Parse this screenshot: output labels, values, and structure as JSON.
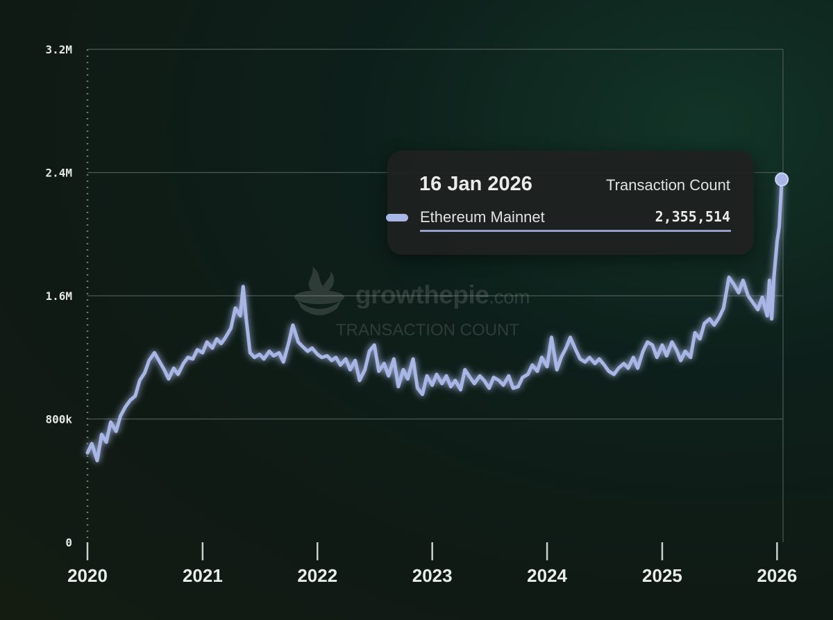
{
  "chart_data": {
    "type": "line",
    "title": "",
    "xlabel": "",
    "ylabel": "",
    "x_ticks": [
      "2020",
      "2021",
      "2022",
      "2023",
      "2024",
      "2025",
      "2026"
    ],
    "y_ticks": [
      "0",
      "800k",
      "1.6M",
      "2.4M",
      "3.2M"
    ],
    "ylim": [
      0,
      3200000
    ],
    "xlim": [
      "2020-01-01",
      "2026-01-20"
    ],
    "grid": true,
    "series": [
      {
        "name": "Ethereum Mainnet",
        "color": "#a8b6e6",
        "points": [
          [
            "2020-01-01",
            580000
          ],
          [
            "2020-01-15",
            640000
          ],
          [
            "2020-02-01",
            530000
          ],
          [
            "2020-02-15",
            700000
          ],
          [
            "2020-03-01",
            650000
          ],
          [
            "2020-03-15",
            780000
          ],
          [
            "2020-04-01",
            720000
          ],
          [
            "2020-04-15",
            820000
          ],
          [
            "2020-05-01",
            880000
          ],
          [
            "2020-05-15",
            920000
          ],
          [
            "2020-06-01",
            950000
          ],
          [
            "2020-06-15",
            1050000
          ],
          [
            "2020-07-01",
            1100000
          ],
          [
            "2020-07-15",
            1180000
          ],
          [
            "2020-08-01",
            1230000
          ],
          [
            "2020-08-15",
            1180000
          ],
          [
            "2020-09-01",
            1120000
          ],
          [
            "2020-09-15",
            1060000
          ],
          [
            "2020-10-01",
            1130000
          ],
          [
            "2020-10-15",
            1090000
          ],
          [
            "2020-11-01",
            1160000
          ],
          [
            "2020-11-15",
            1200000
          ],
          [
            "2020-12-01",
            1190000
          ],
          [
            "2020-12-15",
            1250000
          ],
          [
            "2021-01-01",
            1230000
          ],
          [
            "2021-01-15",
            1300000
          ],
          [
            "2021-02-01",
            1260000
          ],
          [
            "2021-02-15",
            1320000
          ],
          [
            "2021-03-01",
            1290000
          ],
          [
            "2021-03-15",
            1330000
          ],
          [
            "2021-04-01",
            1390000
          ],
          [
            "2021-04-15",
            1520000
          ],
          [
            "2021-05-01",
            1470000
          ],
          [
            "2021-05-10",
            1660000
          ],
          [
            "2021-05-20",
            1440000
          ],
          [
            "2021-06-01",
            1230000
          ],
          [
            "2021-06-15",
            1200000
          ],
          [
            "2021-07-01",
            1220000
          ],
          [
            "2021-07-15",
            1190000
          ],
          [
            "2021-08-01",
            1240000
          ],
          [
            "2021-08-15",
            1210000
          ],
          [
            "2021-09-01",
            1230000
          ],
          [
            "2021-09-15",
            1170000
          ],
          [
            "2021-10-01",
            1290000
          ],
          [
            "2021-10-15",
            1410000
          ],
          [
            "2021-11-01",
            1300000
          ],
          [
            "2021-11-15",
            1270000
          ],
          [
            "2021-12-01",
            1240000
          ],
          [
            "2021-12-15",
            1260000
          ],
          [
            "2022-01-01",
            1220000
          ],
          [
            "2022-01-15",
            1200000
          ],
          [
            "2022-02-01",
            1210000
          ],
          [
            "2022-02-15",
            1180000
          ],
          [
            "2022-03-01",
            1200000
          ],
          [
            "2022-03-15",
            1150000
          ],
          [
            "2022-04-01",
            1190000
          ],
          [
            "2022-04-15",
            1120000
          ],
          [
            "2022-05-01",
            1180000
          ],
          [
            "2022-05-15",
            1050000
          ],
          [
            "2022-06-01",
            1120000
          ],
          [
            "2022-06-15",
            1240000
          ],
          [
            "2022-07-01",
            1280000
          ],
          [
            "2022-07-15",
            1110000
          ],
          [
            "2022-08-01",
            1160000
          ],
          [
            "2022-08-15",
            1080000
          ],
          [
            "2022-09-01",
            1190000
          ],
          [
            "2022-09-15",
            1010000
          ],
          [
            "2022-10-01",
            1120000
          ],
          [
            "2022-10-15",
            1060000
          ],
          [
            "2022-11-01",
            1190000
          ],
          [
            "2022-11-15",
            1000000
          ],
          [
            "2022-12-01",
            960000
          ],
          [
            "2022-12-15",
            1080000
          ],
          [
            "2023-01-01",
            1020000
          ],
          [
            "2023-01-15",
            1090000
          ],
          [
            "2023-02-01",
            1030000
          ],
          [
            "2023-02-15",
            1080000
          ],
          [
            "2023-03-01",
            1010000
          ],
          [
            "2023-03-15",
            1050000
          ],
          [
            "2023-04-01",
            990000
          ],
          [
            "2023-04-15",
            1120000
          ],
          [
            "2023-05-01",
            1070000
          ],
          [
            "2023-05-15",
            1030000
          ],
          [
            "2023-06-01",
            1080000
          ],
          [
            "2023-06-15",
            1050000
          ],
          [
            "2023-07-01",
            1000000
          ],
          [
            "2023-07-15",
            1070000
          ],
          [
            "2023-08-01",
            1050000
          ],
          [
            "2023-08-15",
            1020000
          ],
          [
            "2023-09-01",
            1080000
          ],
          [
            "2023-09-15",
            1000000
          ],
          [
            "2023-10-01",
            1010000
          ],
          [
            "2023-10-15",
            1070000
          ],
          [
            "2023-11-01",
            1090000
          ],
          [
            "2023-11-15",
            1150000
          ],
          [
            "2023-12-01",
            1110000
          ],
          [
            "2023-12-15",
            1200000
          ],
          [
            "2024-01-01",
            1140000
          ],
          [
            "2024-01-15",
            1330000
          ],
          [
            "2024-02-01",
            1120000
          ],
          [
            "2024-02-15",
            1200000
          ],
          [
            "2024-03-01",
            1260000
          ],
          [
            "2024-03-15",
            1330000
          ],
          [
            "2024-04-01",
            1250000
          ],
          [
            "2024-04-15",
            1190000
          ],
          [
            "2024-05-01",
            1170000
          ],
          [
            "2024-05-15",
            1200000
          ],
          [
            "2024-06-01",
            1160000
          ],
          [
            "2024-06-15",
            1190000
          ],
          [
            "2024-07-01",
            1150000
          ],
          [
            "2024-07-15",
            1110000
          ],
          [
            "2024-08-01",
            1090000
          ],
          [
            "2024-08-15",
            1130000
          ],
          [
            "2024-09-01",
            1160000
          ],
          [
            "2024-09-15",
            1130000
          ],
          [
            "2024-10-01",
            1200000
          ],
          [
            "2024-10-15",
            1130000
          ],
          [
            "2024-11-01",
            1240000
          ],
          [
            "2024-11-15",
            1300000
          ],
          [
            "2024-12-01",
            1280000
          ],
          [
            "2024-12-15",
            1200000
          ],
          [
            "2025-01-01",
            1280000
          ],
          [
            "2025-01-15",
            1210000
          ],
          [
            "2025-02-01",
            1300000
          ],
          [
            "2025-02-15",
            1250000
          ],
          [
            "2025-03-01",
            1180000
          ],
          [
            "2025-03-15",
            1240000
          ],
          [
            "2025-04-01",
            1200000
          ],
          [
            "2025-04-15",
            1360000
          ],
          [
            "2025-05-01",
            1320000
          ],
          [
            "2025-05-15",
            1420000
          ],
          [
            "2025-06-01",
            1450000
          ],
          [
            "2025-06-15",
            1410000
          ],
          [
            "2025-07-01",
            1460000
          ],
          [
            "2025-07-15",
            1520000
          ],
          [
            "2025-08-01",
            1720000
          ],
          [
            "2025-08-15",
            1680000
          ],
          [
            "2025-09-01",
            1620000
          ],
          [
            "2025-09-15",
            1700000
          ],
          [
            "2025-10-01",
            1600000
          ],
          [
            "2025-10-15",
            1560000
          ],
          [
            "2025-11-01",
            1510000
          ],
          [
            "2025-11-15",
            1590000
          ],
          [
            "2025-12-01",
            1470000
          ],
          [
            "2025-12-08",
            1700000
          ],
          [
            "2025-12-15",
            1450000
          ],
          [
            "2025-12-22",
            1720000
          ],
          [
            "2026-01-01",
            1950000
          ],
          [
            "2026-01-08",
            2050000
          ],
          [
            "2026-01-16",
            2355514
          ]
        ]
      }
    ],
    "highlight": {
      "date": "2026-01-16",
      "value": 2355514
    }
  },
  "tooltip": {
    "date": "16 Jan 2026",
    "metric": "Transaction Count",
    "series": "Ethereum Mainnet",
    "value": "2,355,514",
    "swatch_color": "#a8b6e6"
  },
  "watermark": {
    "brand_main": "growthepie",
    "brand_suffix": ".com",
    "subtitle": "TRANSACTION COUNT",
    "logo_icon": "pie-logo-icon"
  }
}
